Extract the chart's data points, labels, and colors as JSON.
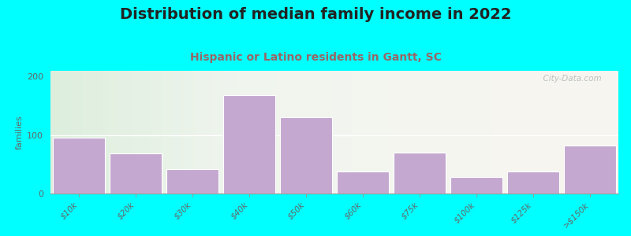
{
  "title": "Distribution of median family income in 2022",
  "subtitle": "Hispanic or Latino residents in Gantt, SC",
  "categories": [
    "$10k",
    "$20k",
    "$30k",
    "$40k",
    "$50k",
    "$60k",
    "$75k",
    "$100k",
    "$125k",
    ">$150k"
  ],
  "values": [
    95,
    68,
    42,
    168,
    130,
    38,
    70,
    28,
    38,
    82
  ],
  "bar_color": "#C4A8D0",
  "bar_edge_color": "#ffffff",
  "ylabel": "families",
  "ylim": [
    0,
    210
  ],
  "yticks": [
    0,
    100,
    200
  ],
  "bg_outer": "#00FFFF",
  "title_fontsize": 14,
  "subtitle_fontsize": 10,
  "title_color": "#222222",
  "subtitle_color": "#996666",
  "watermark": "  City-Data.com",
  "ylabel_color": "#666666",
  "tick_color": "#666666"
}
